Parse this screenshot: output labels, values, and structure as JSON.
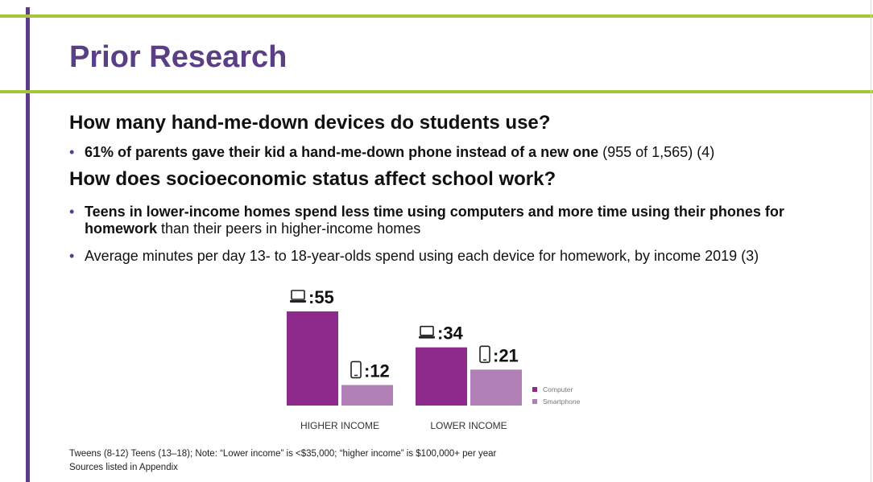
{
  "slide": {
    "title": "Prior Research",
    "q1": "How many hand-me-down devices do students use?",
    "b1_bold": "61% of parents gave their kid a hand-me-down phone instead of a new one",
    "b1_rest": " (955 of 1,565) (4)",
    "q2": "How does socioeconomic status affect school work?",
    "b2_bold": "Teens in lower-income homes spend less time using computers and more time using their phones for homework",
    "b2_rest": " than their peers in higher-income homes",
    "b3": "Average minutes per day 13- to 18-year-olds spend using each device for homework, by income 2019 (3)",
    "footnote": "Tweens (8-12) Teens (13–18); Note: “Lower income” is <$35,000; “higher income” is $100,000+ per year",
    "sources": "Sources listed in Appendix",
    "bullet": "•"
  },
  "colors": {
    "computer": "#8e2a8b",
    "smartphone": "#b07fb6",
    "accent": "#5a3f86",
    "rule": "#a4c439"
  },
  "chart_data": {
    "type": "bar",
    "categories": [
      "HIGHER INCOME",
      "LOWER INCOME"
    ],
    "series": [
      {
        "name": "Computer",
        "values": [
          55,
          34
        ],
        "labels": [
          ":55",
          ":34"
        ],
        "icon": "laptop-icon"
      },
      {
        "name": "Smartphone",
        "values": [
          12,
          21
        ],
        "labels": [
          ":12",
          ":21"
        ],
        "icon": "phone-icon"
      }
    ],
    "legend": "right"
  }
}
